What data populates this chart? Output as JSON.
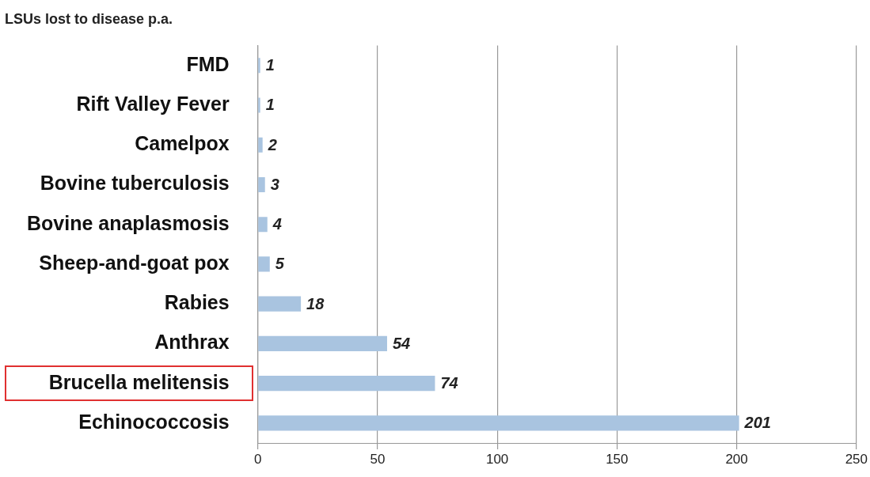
{
  "chart_data": {
    "type": "bar",
    "orientation": "horizontal",
    "title": "LSUs lost to disease p.a.",
    "categories": [
      "FMD",
      "Rift Valley Fever",
      "Camelpox",
      "Bovine tuberculosis",
      "Bovine anaplasmosis",
      "Sheep-and-goat pox",
      "Rabies",
      "Anthrax",
      "Brucella melitensis",
      "Echinococcosis"
    ],
    "values": [
      1,
      1,
      2,
      3,
      4,
      5,
      18,
      54,
      74,
      201
    ],
    "color": "#a9c4e0",
    "xlim": [
      0,
      250
    ],
    "xticks": [
      0,
      50,
      100,
      150,
      200,
      250
    ],
    "grid": "x",
    "legend": false,
    "data_labels": true
  }
}
